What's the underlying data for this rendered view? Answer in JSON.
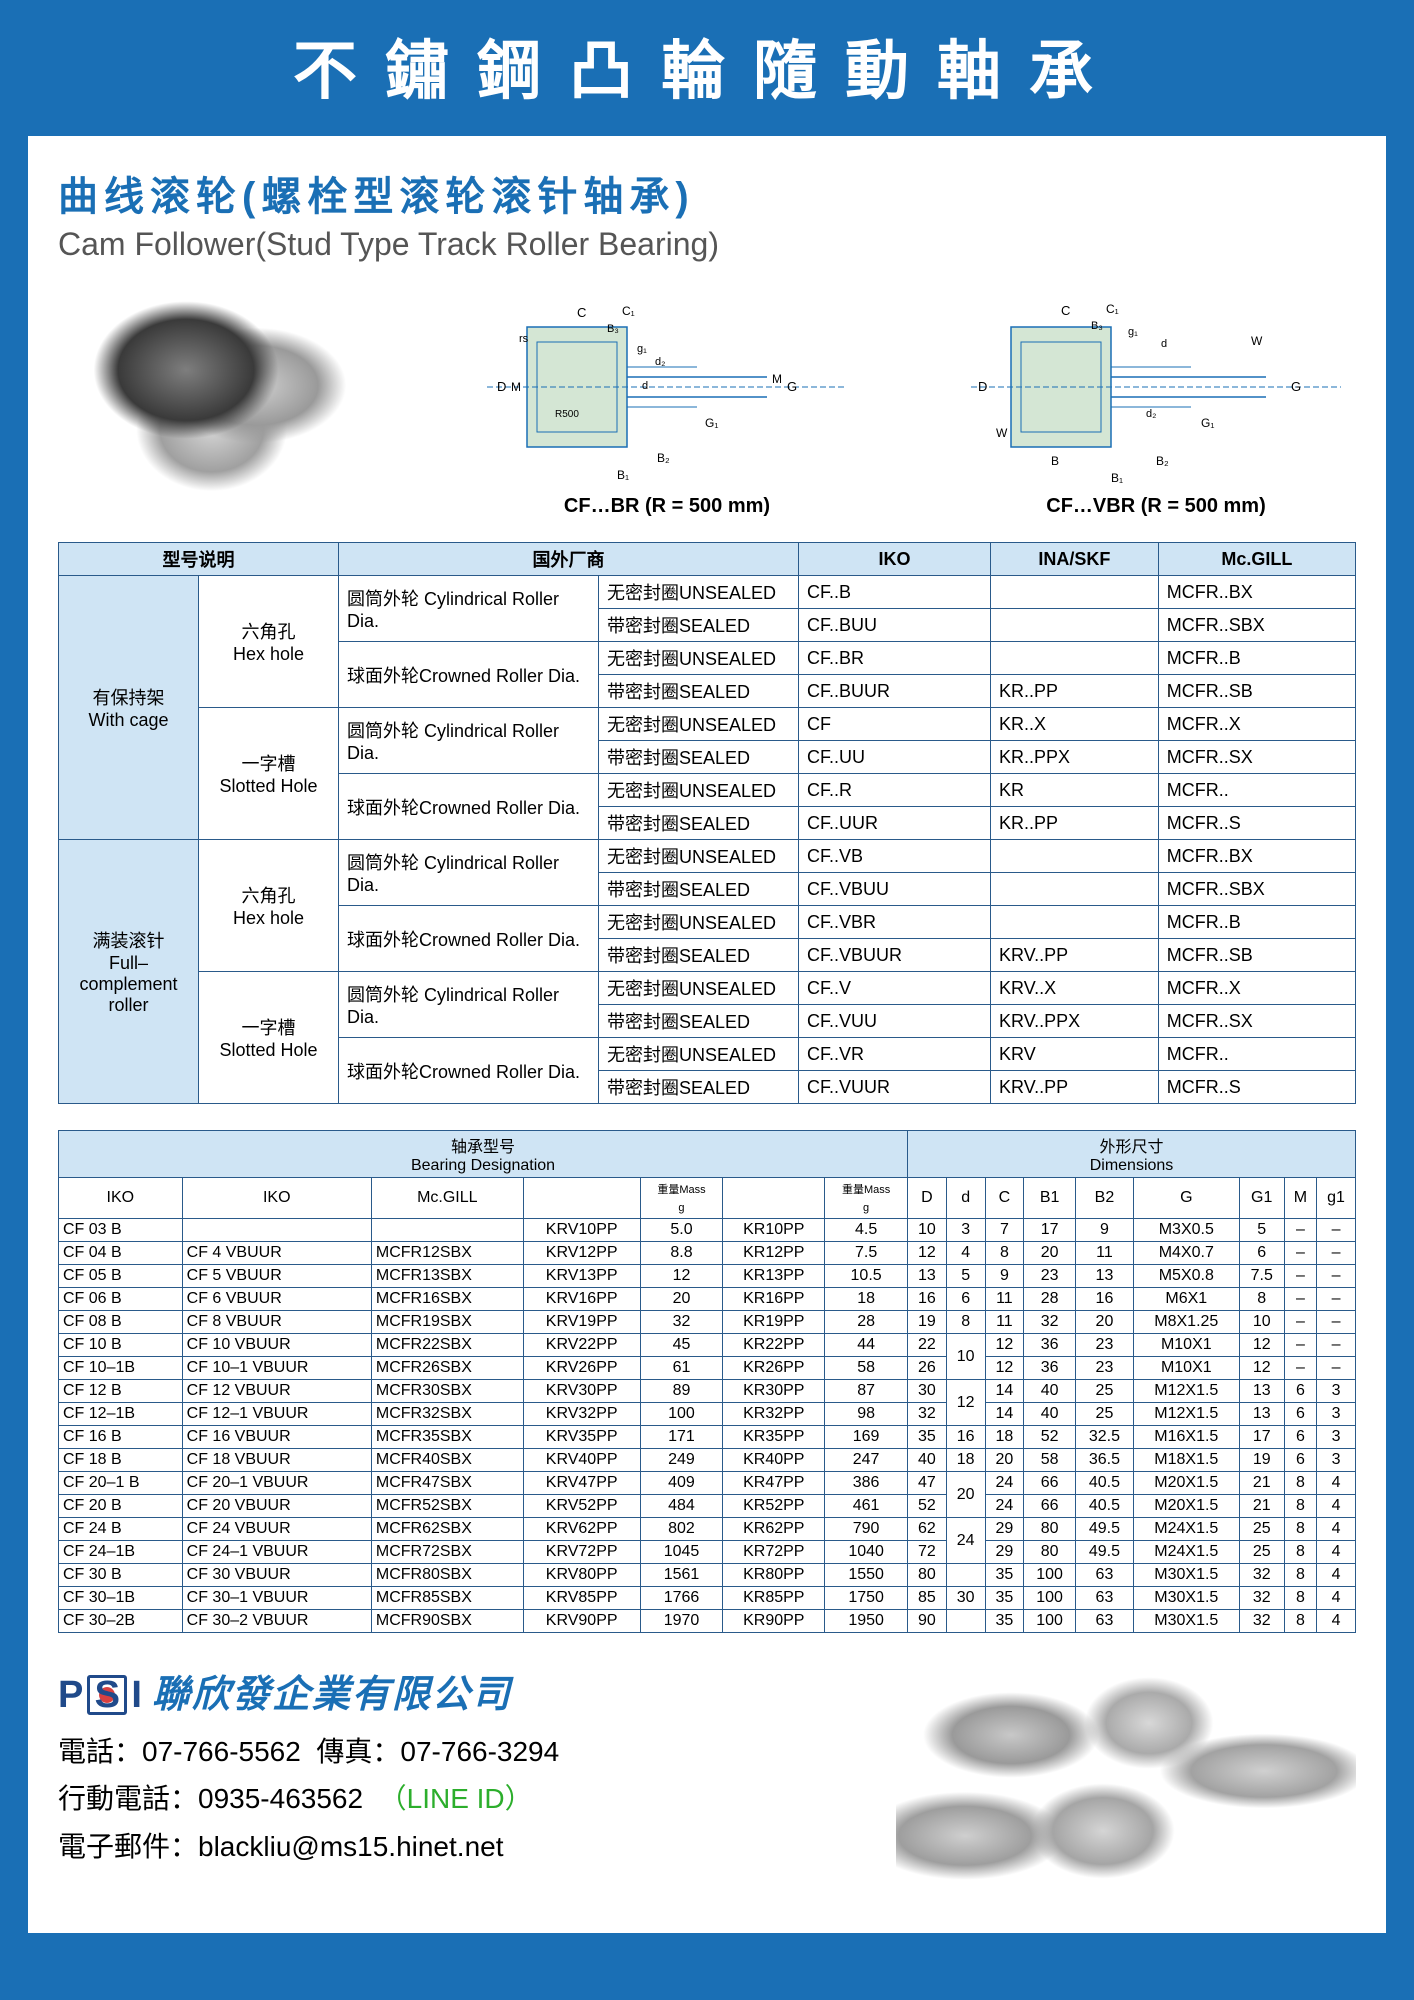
{
  "header": "不鏽鋼凸輪隨動軸承",
  "section": {
    "title_cn": "曲线滚轮(螺栓型滚轮滚针轴承)",
    "title_en": "Cam Follower(Stud Type Track Roller Bearing)",
    "diagram1_caption": "CF…BR  (R = 500 mm)",
    "diagram2_caption": "CF…VBR  (R = 500 mm)"
  },
  "table1": {
    "head": {
      "model_desc": "型号说明",
      "foreign_mfr": "国外厂商",
      "iko": "IKO",
      "inaskf": "INA/SKF",
      "mcgill": "Mc.GILL"
    },
    "groups": [
      {
        "group_cn": "有保持架",
        "group_en": "With cage",
        "subgroups": [
          {
            "hole_cn": "六角孔",
            "hole_en": "Hex hole",
            "rows": [
              {
                "roller": "圆筒外轮 Cylindrical Roller Dia.",
                "rows": [
                  {
                    "seal": "无密封圈UNSEALED",
                    "iko": "CF..B",
                    "ina": "",
                    "mc": "MCFR..BX"
                  },
                  {
                    "seal": "带密封圈SEALED",
                    "iko": "CF..BUU",
                    "ina": "",
                    "mc": "MCFR..SBX"
                  }
                ]
              },
              {
                "roller": "球面外轮Crowned Roller Dia.",
                "rows": [
                  {
                    "seal": "无密封圈UNSEALED",
                    "iko": "CF..BR",
                    "ina": "",
                    "mc": "MCFR..B"
                  },
                  {
                    "seal": "带密封圈SEALED",
                    "iko": "CF..BUUR",
                    "ina": "KR..PP",
                    "mc": "MCFR..SB"
                  }
                ]
              }
            ]
          },
          {
            "hole_cn": "一字槽",
            "hole_en": "Slotted Hole",
            "rows": [
              {
                "roller": "圆筒外轮 Cylindrical Roller Dia.",
                "rows": [
                  {
                    "seal": "无密封圈UNSEALED",
                    "iko": "CF",
                    "ina": "KR..X",
                    "mc": "MCFR..X"
                  },
                  {
                    "seal": "带密封圈SEALED",
                    "iko": "CF..UU",
                    "ina": "KR..PPX",
                    "mc": "MCFR..SX"
                  }
                ]
              },
              {
                "roller": "球面外轮Crowned Roller Dia.",
                "rows": [
                  {
                    "seal": "无密封圈UNSEALED",
                    "iko": "CF..R",
                    "ina": "KR",
                    "mc": "MCFR.."
                  },
                  {
                    "seal": "带密封圈SEALED",
                    "iko": "CF..UUR",
                    "ina": "KR..PP",
                    "mc": "MCFR..S"
                  }
                ]
              }
            ]
          }
        ]
      },
      {
        "group_cn": "满装滚针",
        "group_en": "Full-complement roller",
        "subgroups": [
          {
            "hole_cn": "六角孔",
            "hole_en": "Hex hole",
            "rows": [
              {
                "roller": "圆筒外轮 Cylindrical Roller Dia.",
                "rows": [
                  {
                    "seal": "无密封圈UNSEALED",
                    "iko": "CF..VB",
                    "ina": "",
                    "mc": "MCFR..BX"
                  },
                  {
                    "seal": "带密封圈SEALED",
                    "iko": "CF..VBUU",
                    "ina": "",
                    "mc": "MCFR..SBX"
                  }
                ]
              },
              {
                "roller": "球面外轮Crowned Roller Dia.",
                "rows": [
                  {
                    "seal": "无密封圈UNSEALED",
                    "iko": "CF..VBR",
                    "ina": "",
                    "mc": "MCFR..B"
                  },
                  {
                    "seal": "带密封圈SEALED",
                    "iko": "CF..VBUUR",
                    "ina": "KRV..PP",
                    "mc": "MCFR..SB"
                  }
                ]
              }
            ]
          },
          {
            "hole_cn": "一字槽",
            "hole_en": "Slotted Hole",
            "rows": [
              {
                "roller": "圆筒外轮 Cylindrical Roller Dia.",
                "rows": [
                  {
                    "seal": "无密封圈UNSEALED",
                    "iko": "CF..V",
                    "ina": "KRV..X",
                    "mc": "MCFR..X"
                  },
                  {
                    "seal": "带密封圈SEALED",
                    "iko": "CF..VUU",
                    "ina": "KRV..PPX",
                    "mc": "MCFR..SX"
                  }
                ]
              },
              {
                "roller": "球面外轮Crowned Roller Dia.",
                "rows": [
                  {
                    "seal": "无密封圈UNSEALED",
                    "iko": "CF..VR",
                    "ina": "KRV",
                    "mc": "MCFR.."
                  },
                  {
                    "seal": "带密封圈SEALED",
                    "iko": "CF..VUUR",
                    "ina": "KRV..PP",
                    "mc": "MCFR..S"
                  }
                ]
              }
            ]
          }
        ]
      }
    ]
  },
  "table2": {
    "head": {
      "bearing_cn": "轴承型号",
      "bearing_en": "Bearing Designation",
      "dim_cn": "外形尺寸",
      "dim_en": "Dimensions",
      "cols": [
        "IKO",
        "IKO",
        "Mc.GILL",
        "",
        "重量Mass g",
        "",
        "重量Mass g",
        "D",
        "d",
        "C",
        "B1",
        "B2",
        "G",
        "G1",
        "M",
        "g1"
      ]
    },
    "rows": [
      [
        "CF 03 B",
        "",
        "",
        "KRV10PP",
        "5.0",
        "KR10PP",
        "4.5",
        "10",
        "3",
        "7",
        "17",
        "9",
        "M3X0.5",
        "5",
        "–",
        "–"
      ],
      [
        "CF 04 B",
        "CF 4 VBUUR",
        "MCFR12SBX",
        "KRV12PP",
        "8.8",
        "KR12PP",
        "7.5",
        "12",
        "4",
        "8",
        "20",
        "11",
        "M4X0.7",
        "6",
        "–",
        "–"
      ],
      [
        "CF 05 B",
        "CF 5 VBUUR",
        "MCFR13SBX",
        "KRV13PP",
        "12",
        "KR13PP",
        "10.5",
        "13",
        "5",
        "9",
        "23",
        "13",
        "M5X0.8",
        "7.5",
        "–",
        "–"
      ],
      [
        "CF 06 B",
        "CF 6 VBUUR",
        "MCFR16SBX",
        "KRV16PP",
        "20",
        "KR16PP",
        "18",
        "16",
        "6",
        "11",
        "28",
        "16",
        "M6X1",
        "8",
        "–",
        "–"
      ],
      [
        "CF 08 B",
        "CF 8 VBUUR",
        "MCFR19SBX",
        "KRV19PP",
        "32",
        "KR19PP",
        "28",
        "19",
        "8",
        "11",
        "32",
        "20",
        "M8X1.25",
        "10",
        "–",
        "–"
      ],
      [
        "CF 10 B",
        "CF 10 VBUUR",
        "MCFR22SBX",
        "KRV22PP",
        "45",
        "KR22PP",
        "44",
        "22",
        "",
        "12",
        "36",
        "23",
        "M10X1",
        "12",
        "–",
        "–"
      ],
      [
        "CF 10–1B",
        "CF 10–1 VBUUR",
        "MCFR26SBX",
        "KRV26PP",
        "61",
        "KR26PP",
        "58",
        "26",
        "",
        "12",
        "36",
        "23",
        "M10X1",
        "12",
        "–",
        "–"
      ],
      [
        "CF 12 B",
        "CF 12 VBUUR",
        "MCFR30SBX",
        "KRV30PP",
        "89",
        "KR30PP",
        "87",
        "30",
        "",
        "14",
        "40",
        "25",
        "M12X1.5",
        "13",
        "6",
        "3"
      ],
      [
        "CF 12–1B",
        "CF 12–1 VBUUR",
        "MCFR32SBX",
        "KRV32PP",
        "100",
        "KR32PP",
        "98",
        "32",
        "",
        "14",
        "40",
        "25",
        "M12X1.5",
        "13",
        "6",
        "3"
      ],
      [
        "CF 16 B",
        "CF 16 VBUUR",
        "MCFR35SBX",
        "KRV35PP",
        "171",
        "KR35PP",
        "169",
        "35",
        "16",
        "18",
        "52",
        "32.5",
        "M16X1.5",
        "17",
        "6",
        "3"
      ],
      [
        "CF 18 B",
        "CF 18 VBUUR",
        "MCFR40SBX",
        "KRV40PP",
        "249",
        "KR40PP",
        "247",
        "40",
        "18",
        "20",
        "58",
        "36.5",
        "M18X1.5",
        "19",
        "6",
        "3"
      ],
      [
        "CF 20–1 B",
        "CF 20–1 VBUUR",
        "MCFR47SBX",
        "KRV47PP",
        "409",
        "KR47PP",
        "386",
        "47",
        "",
        "24",
        "66",
        "40.5",
        "M20X1.5",
        "21",
        "8",
        "4"
      ],
      [
        "CF 20 B",
        "CF 20 VBUUR",
        "MCFR52SBX",
        "KRV52PP",
        "484",
        "KR52PP",
        "461",
        "52",
        "",
        "24",
        "66",
        "40.5",
        "M20X1.5",
        "21",
        "8",
        "4"
      ],
      [
        "CF 24 B",
        "CF 24 VBUUR",
        "MCFR62SBX",
        "KRV62PP",
        "802",
        "KR62PP",
        "790",
        "62",
        "",
        "29",
        "80",
        "49.5",
        "M24X1.5",
        "25",
        "8",
        "4"
      ],
      [
        "CF 24–1B",
        "CF 24–1 VBUUR",
        "MCFR72SBX",
        "KRV72PP",
        "1045",
        "KR72PP",
        "1040",
        "72",
        "",
        "29",
        "80",
        "49.5",
        "M24X1.5",
        "25",
        "8",
        "4"
      ],
      [
        "CF 30 B",
        "CF 30 VBUUR",
        "MCFR80SBX",
        "KRV80PP",
        "1561",
        "KR80PP",
        "1550",
        "80",
        "",
        "35",
        "100",
        "63",
        "M30X1.5",
        "32",
        "8",
        "4"
      ],
      [
        "CF 30–1B",
        "CF 30–1 VBUUR",
        "MCFR85SBX",
        "KRV85PP",
        "1766",
        "KR85PP",
        "1750",
        "85",
        "30",
        "35",
        "100",
        "63",
        "M30X1.5",
        "32",
        "8",
        "4"
      ],
      [
        "CF 30–2B",
        "CF 30–2 VBUUR",
        "MCFR90SBX",
        "KRV90PP",
        "1970",
        "KR90PP",
        "1950",
        "90",
        "",
        "35",
        "100",
        "63",
        "M30X1.5",
        "32",
        "8",
        "4"
      ]
    ],
    "d_merges": [
      {
        "start": 5,
        "span": 2,
        "val": "10"
      },
      {
        "start": 7,
        "span": 2,
        "val": "12"
      },
      {
        "start": 11,
        "span": 2,
        "val": "20"
      },
      {
        "start": 13,
        "span": 2,
        "val": "24"
      }
    ]
  },
  "footer": {
    "company": "聯欣發企業有限公司",
    "tel_label": "電話：",
    "tel": "07-766-5562",
    "fax_label": "傳真：",
    "fax": "07-766-3294",
    "mobile_label": "行動電話：",
    "mobile": "0935-463562",
    "line_id": "（LINE ID）",
    "email_label": "電子郵件：",
    "email": "blackliu@ms15.hinet.net"
  }
}
